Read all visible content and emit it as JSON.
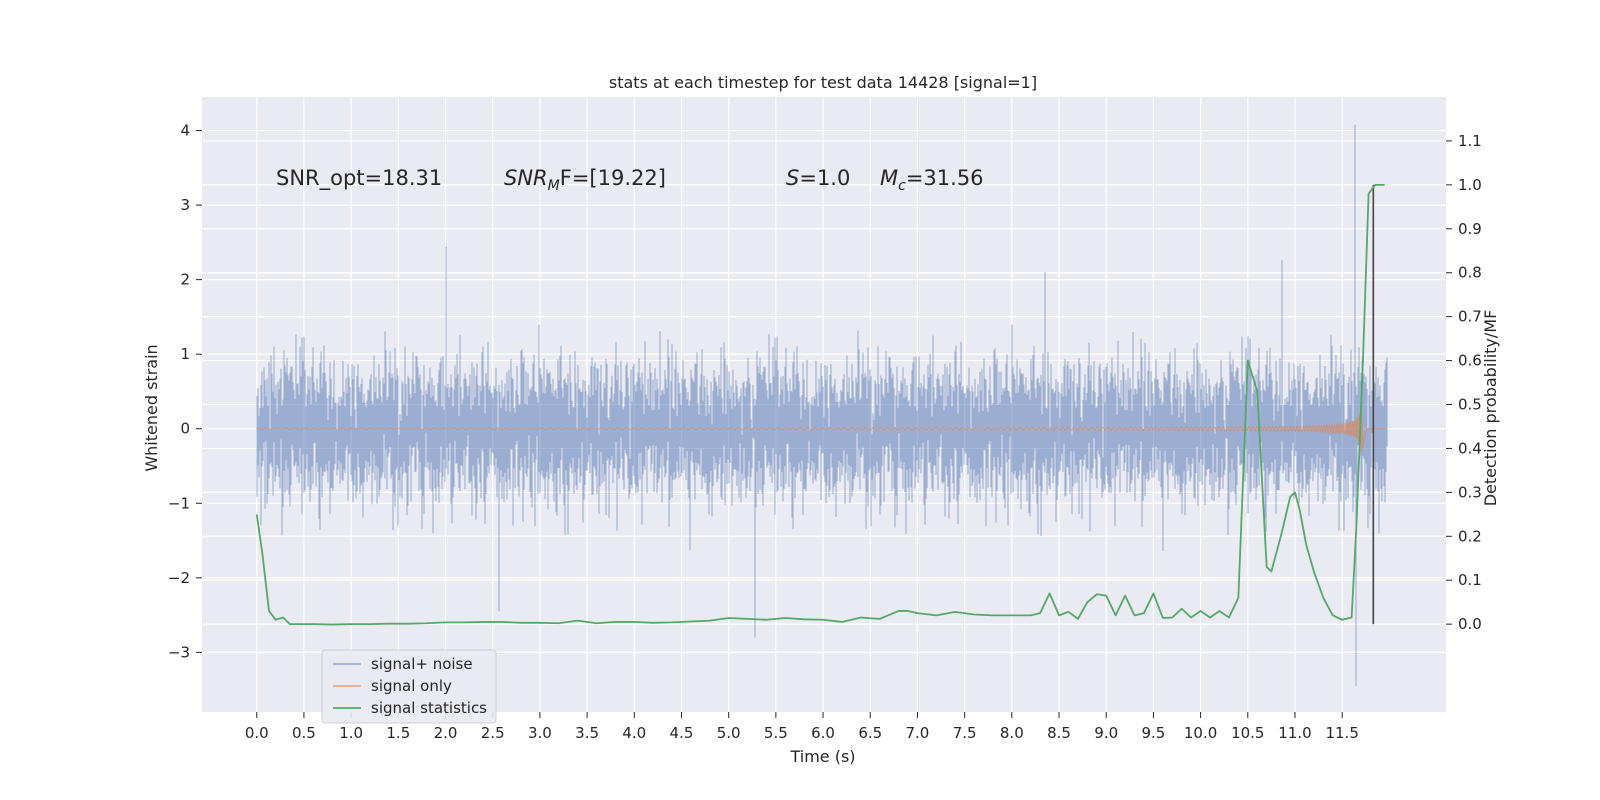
{
  "chart_data": {
    "type": "line",
    "title": "stats at each timestep for test data 14428 [signal=1]",
    "xlabel": "Time (s)",
    "ylabel_left": "Whitened strain",
    "ylabel_right": "Detection probability/MF",
    "xlim": [
      -0.58,
      12.6
    ],
    "ylim_left": [
      -3.8,
      4.45
    ],
    "ylim_right": [
      -0.2,
      1.2
    ],
    "x_ticks": [
      "0.0",
      "0.5",
      "1.0",
      "1.5",
      "2.0",
      "2.5",
      "3.0",
      "3.5",
      "4.0",
      "4.5",
      "5.0",
      "5.5",
      "6.0",
      "6.5",
      "7.0",
      "7.5",
      "8.0",
      "8.5",
      "9.0",
      "9.5",
      "10.0",
      "10.5",
      "11.0",
      "11.5"
    ],
    "y_ticks_left": [
      "−3",
      "−2",
      "−1",
      "0",
      "1",
      "2",
      "3",
      "4"
    ],
    "y_ticks_right": [
      "0.0",
      "0.1",
      "0.2",
      "0.3",
      "0.4",
      "0.5",
      "0.6",
      "0.7",
      "0.8",
      "0.9",
      "1.0",
      "1.1"
    ],
    "grid": true,
    "legend_position": "lower-left",
    "colors": {
      "background": "#eaeaf2",
      "grid": "#ffffff",
      "noise": "#4c72b0",
      "signal": "#dd8452",
      "stats": "#55a868",
      "marker": "#444444"
    },
    "annotations": {
      "snr_opt": "SNR_opt=18.31",
      "snr_mf": "SNR",
      "snr_mf_sub": "M",
      "snr_mf_rest": "F=[19.22]",
      "s_var": "S",
      "s_rest": "=1.0",
      "mc_var": "M",
      "mc_sub": "c",
      "mc_rest": "=31.56"
    },
    "merger_marker_x": 11.83,
    "series": [
      {
        "name": "signal+ noise",
        "axis": "left",
        "envelope_std": 0.44,
        "note_max": 4.08,
        "note_min": -3.45
      },
      {
        "name": "signal only",
        "axis": "left",
        "merger_time": 11.72
      },
      {
        "name": "signal statistics",
        "axis": "right",
        "x": [
          0.0,
          0.06,
          0.13,
          0.2,
          0.28,
          0.35,
          0.45,
          0.6,
          0.8,
          1.0,
          1.2,
          1.4,
          1.6,
          1.8,
          2.0,
          2.2,
          2.4,
          2.6,
          2.8,
          3.0,
          3.2,
          3.4,
          3.6,
          3.8,
          4.0,
          4.2,
          4.4,
          4.6,
          4.8,
          5.0,
          5.2,
          5.4,
          5.6,
          5.8,
          6.0,
          6.2,
          6.4,
          6.6,
          6.8,
          6.9,
          7.0,
          7.2,
          7.4,
          7.6,
          7.8,
          8.0,
          8.2,
          8.3,
          8.4,
          8.5,
          8.6,
          8.7,
          8.8,
          8.9,
          9.0,
          9.1,
          9.2,
          9.3,
          9.4,
          9.5,
          9.6,
          9.7,
          9.8,
          9.9,
          10.0,
          10.1,
          10.2,
          10.3,
          10.4,
          10.5,
          10.6,
          10.7,
          10.75,
          10.85,
          10.95,
          11.0,
          11.05,
          11.12,
          11.2,
          11.3,
          11.4,
          11.5,
          11.6,
          11.65,
          11.72,
          11.78,
          11.85,
          11.9,
          11.95
        ],
        "y": [
          0.25,
          0.16,
          0.03,
          0.01,
          0.015,
          0.0,
          0.0,
          0.0,
          -0.001,
          0.0,
          0.0,
          0.001,
          0.001,
          0.002,
          0.004,
          0.004,
          0.005,
          0.005,
          0.003,
          0.003,
          0.002,
          0.008,
          0.002,
          0.005,
          0.005,
          0.003,
          0.004,
          0.006,
          0.008,
          0.014,
          0.012,
          0.01,
          0.014,
          0.011,
          0.01,
          0.005,
          0.015,
          0.012,
          0.03,
          0.03,
          0.025,
          0.02,
          0.028,
          0.022,
          0.02,
          0.02,
          0.02,
          0.025,
          0.07,
          0.02,
          0.028,
          0.012,
          0.05,
          0.068,
          0.065,
          0.02,
          0.065,
          0.02,
          0.025,
          0.07,
          0.014,
          0.015,
          0.035,
          0.015,
          0.03,
          0.015,
          0.03,
          0.015,
          0.06,
          0.6,
          0.53,
          0.13,
          0.12,
          0.2,
          0.29,
          0.3,
          0.26,
          0.18,
          0.12,
          0.06,
          0.02,
          0.01,
          0.015,
          0.22,
          0.6,
          0.98,
          1.0,
          1.0,
          1.0
        ]
      }
    ],
    "legend": [
      "signal+ noise",
      "signal only",
      "signal statistics"
    ]
  }
}
